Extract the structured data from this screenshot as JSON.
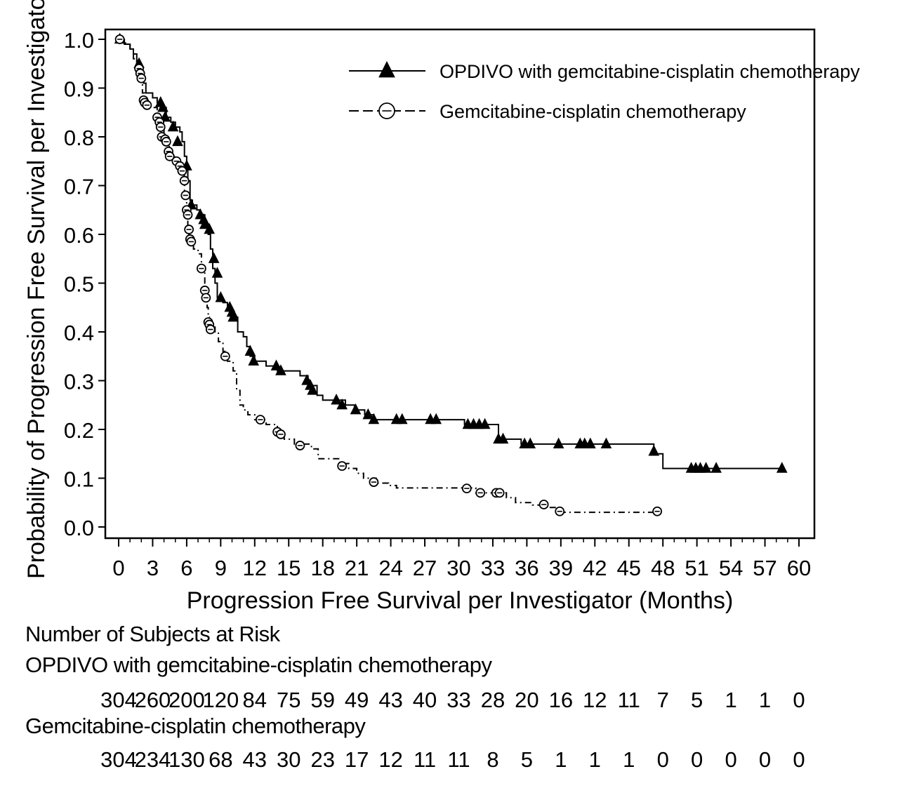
{
  "chart_data": {
    "type": "line",
    "subtype": "kaplan-meier",
    "title": "",
    "xlabel": "Progression Free Survival per Investigator (Months)",
    "ylabel": "Probability of Progression Free Survival per Investigator",
    "xlim": [
      0,
      60
    ],
    "ylim": [
      0.0,
      1.0
    ],
    "x_ticks": [
      0,
      3,
      6,
      9,
      12,
      15,
      18,
      21,
      24,
      27,
      30,
      33,
      36,
      39,
      42,
      45,
      48,
      51,
      54,
      57,
      60
    ],
    "y_ticks": [
      "0.0",
      "0.1",
      "0.2",
      "0.3",
      "0.4",
      "0.5",
      "0.6",
      "0.7",
      "0.8",
      "0.9",
      "1.0"
    ],
    "grid": false,
    "legend_position": "top-right",
    "series": [
      {
        "name": "OPDIVO with gemcitabine-cisplatin chemotherapy",
        "line_style": "solid",
        "marker": "filled-triangle",
        "color": "#000000",
        "steps": [
          [
            0,
            1.0
          ],
          [
            0.5,
            0.99
          ],
          [
            1.0,
            0.98
          ],
          [
            1.3,
            0.97
          ],
          [
            1.6,
            0.95
          ],
          [
            2.0,
            0.93
          ],
          [
            2.2,
            0.91
          ],
          [
            2.4,
            0.89
          ],
          [
            3.0,
            0.88
          ],
          [
            3.4,
            0.87
          ],
          [
            3.9,
            0.86
          ],
          [
            4.2,
            0.84
          ],
          [
            4.6,
            0.83
          ],
          [
            5.0,
            0.82
          ],
          [
            5.4,
            0.81
          ],
          [
            5.6,
            0.79
          ],
          [
            5.8,
            0.76
          ],
          [
            6.0,
            0.74
          ],
          [
            6.1,
            0.71
          ],
          [
            6.3,
            0.67
          ],
          [
            6.5,
            0.66
          ],
          [
            6.9,
            0.65
          ],
          [
            7.2,
            0.64
          ],
          [
            7.6,
            0.62
          ],
          [
            7.9,
            0.6
          ],
          [
            8.1,
            0.57
          ],
          [
            8.3,
            0.53
          ],
          [
            8.5,
            0.5
          ],
          [
            8.7,
            0.47
          ],
          [
            9.2,
            0.46
          ],
          [
            9.6,
            0.45
          ],
          [
            10.0,
            0.43
          ],
          [
            10.5,
            0.4
          ],
          [
            11.0,
            0.39
          ],
          [
            11.3,
            0.37
          ],
          [
            11.6,
            0.35
          ],
          [
            12.0,
            0.34
          ],
          [
            13.0,
            0.33
          ],
          [
            14.0,
            0.32
          ],
          [
            16.0,
            0.31
          ],
          [
            16.7,
            0.29
          ],
          [
            17.5,
            0.27
          ],
          [
            18.0,
            0.26
          ],
          [
            20.0,
            0.25
          ],
          [
            20.8,
            0.24
          ],
          [
            21.7,
            0.23
          ],
          [
            22.5,
            0.22
          ],
          [
            30.5,
            0.21
          ],
          [
            33.5,
            0.18
          ],
          [
            35.5,
            0.17
          ],
          [
            47.2,
            0.15
          ],
          [
            48.0,
            0.12
          ],
          [
            58.5,
            0.12
          ]
        ],
        "censor_marks": [
          [
            0.1,
            1.0
          ],
          [
            1.8,
            0.95
          ],
          [
            3.7,
            0.87
          ],
          [
            3.9,
            0.86
          ],
          [
            4.1,
            0.84
          ],
          [
            4.8,
            0.82
          ],
          [
            5.2,
            0.79
          ],
          [
            6.0,
            0.74
          ],
          [
            6.4,
            0.66
          ],
          [
            7.2,
            0.64
          ],
          [
            7.5,
            0.63
          ],
          [
            7.6,
            0.62
          ],
          [
            8.0,
            0.61
          ],
          [
            8.4,
            0.55
          ],
          [
            8.7,
            0.52
          ],
          [
            9.0,
            0.47
          ],
          [
            9.8,
            0.45
          ],
          [
            10.0,
            0.44
          ],
          [
            10.1,
            0.43
          ],
          [
            11.6,
            0.36
          ],
          [
            11.9,
            0.34
          ],
          [
            13.9,
            0.33
          ],
          [
            14.3,
            0.32
          ],
          [
            16.6,
            0.3
          ],
          [
            16.9,
            0.29
          ],
          [
            17.1,
            0.28
          ],
          [
            19.2,
            0.26
          ],
          [
            19.7,
            0.25
          ],
          [
            20.9,
            0.24
          ],
          [
            22.0,
            0.23
          ],
          [
            22.5,
            0.22
          ],
          [
            24.5,
            0.22
          ],
          [
            25.0,
            0.22
          ],
          [
            27.5,
            0.22
          ],
          [
            28.0,
            0.22
          ],
          [
            30.8,
            0.21
          ],
          [
            31.3,
            0.21
          ],
          [
            31.8,
            0.21
          ],
          [
            32.3,
            0.21
          ],
          [
            33.5,
            0.18
          ],
          [
            33.9,
            0.18
          ],
          [
            35.8,
            0.17
          ],
          [
            36.3,
            0.17
          ],
          [
            38.8,
            0.17
          ],
          [
            40.7,
            0.17
          ],
          [
            41.1,
            0.17
          ],
          [
            41.6,
            0.17
          ],
          [
            43.0,
            0.17
          ],
          [
            47.2,
            0.155
          ],
          [
            50.5,
            0.12
          ],
          [
            50.9,
            0.12
          ],
          [
            51.3,
            0.12
          ],
          [
            51.8,
            0.12
          ],
          [
            52.7,
            0.12
          ],
          [
            58.5,
            0.12
          ]
        ]
      },
      {
        "name": "Gemcitabine-cisplatin chemotherapy",
        "line_style": "dash-dot",
        "marker": "open-circle-with-bar",
        "color": "#000000",
        "steps": [
          [
            0,
            1.0
          ],
          [
            0.6,
            0.99
          ],
          [
            1.0,
            0.98
          ],
          [
            1.3,
            0.96
          ],
          [
            1.6,
            0.94
          ],
          [
            1.9,
            0.92
          ],
          [
            2.1,
            0.89
          ],
          [
            2.3,
            0.87
          ],
          [
            2.6,
            0.86
          ],
          [
            3.4,
            0.84
          ],
          [
            3.7,
            0.82
          ],
          [
            4.0,
            0.8
          ],
          [
            4.3,
            0.78
          ],
          [
            4.6,
            0.76
          ],
          [
            5.0,
            0.75
          ],
          [
            5.3,
            0.74
          ],
          [
            5.6,
            0.72
          ],
          [
            5.8,
            0.68
          ],
          [
            6.0,
            0.65
          ],
          [
            6.1,
            0.61
          ],
          [
            6.2,
            0.58
          ],
          [
            6.6,
            0.57
          ],
          [
            7.0,
            0.56
          ],
          [
            7.3,
            0.53
          ],
          [
            7.6,
            0.5
          ],
          [
            7.7,
            0.48
          ],
          [
            7.8,
            0.45
          ],
          [
            7.9,
            0.43
          ],
          [
            8.0,
            0.41
          ],
          [
            8.5,
            0.4
          ],
          [
            8.8,
            0.38
          ],
          [
            9.2,
            0.36
          ],
          [
            9.6,
            0.34
          ],
          [
            10.1,
            0.32
          ],
          [
            10.4,
            0.28
          ],
          [
            10.7,
            0.25
          ],
          [
            11.0,
            0.24
          ],
          [
            11.4,
            0.23
          ],
          [
            12.0,
            0.22
          ],
          [
            13.0,
            0.21
          ],
          [
            14.0,
            0.19
          ],
          [
            14.6,
            0.18
          ],
          [
            15.5,
            0.17
          ],
          [
            17.0,
            0.16
          ],
          [
            17.6,
            0.14
          ],
          [
            19.5,
            0.13
          ],
          [
            20.3,
            0.12
          ],
          [
            21.0,
            0.11
          ],
          [
            21.6,
            0.1
          ],
          [
            22.7,
            0.09
          ],
          [
            23.8,
            0.085
          ],
          [
            24.5,
            0.08
          ],
          [
            31.5,
            0.07
          ],
          [
            34.2,
            0.06
          ],
          [
            35.0,
            0.05
          ],
          [
            36.5,
            0.045
          ],
          [
            38.0,
            0.04
          ],
          [
            38.8,
            0.03
          ],
          [
            47.5,
            0.03
          ]
        ],
        "censor_marks": [
          [
            0.1,
            1.0
          ],
          [
            1.8,
            0.94
          ],
          [
            1.9,
            0.93
          ],
          [
            2.0,
            0.92
          ],
          [
            2.2,
            0.875
          ],
          [
            2.3,
            0.87
          ],
          [
            2.5,
            0.865
          ],
          [
            3.4,
            0.84
          ],
          [
            3.6,
            0.83
          ],
          [
            3.7,
            0.82
          ],
          [
            3.8,
            0.8
          ],
          [
            4.1,
            0.795
          ],
          [
            4.2,
            0.79
          ],
          [
            4.4,
            0.77
          ],
          [
            4.5,
            0.76
          ],
          [
            5.1,
            0.75
          ],
          [
            5.4,
            0.74
          ],
          [
            5.6,
            0.73
          ],
          [
            5.8,
            0.71
          ],
          [
            5.9,
            0.68
          ],
          [
            6.0,
            0.65
          ],
          [
            6.1,
            0.64
          ],
          [
            6.2,
            0.61
          ],
          [
            6.3,
            0.59
          ],
          [
            6.4,
            0.585
          ],
          [
            7.3,
            0.53
          ],
          [
            7.6,
            0.485
          ],
          [
            7.7,
            0.47
          ],
          [
            7.9,
            0.42
          ],
          [
            8.0,
            0.415
          ],
          [
            8.1,
            0.405
          ],
          [
            9.4,
            0.35
          ],
          [
            12.5,
            0.22
          ],
          [
            14.0,
            0.195
          ],
          [
            14.3,
            0.19
          ],
          [
            16.0,
            0.167
          ],
          [
            19.7,
            0.125
          ],
          [
            22.5,
            0.092
          ],
          [
            30.7,
            0.079
          ],
          [
            31.9,
            0.07
          ],
          [
            33.3,
            0.07
          ],
          [
            33.6,
            0.07
          ],
          [
            37.5,
            0.046
          ],
          [
            38.9,
            0.032
          ],
          [
            47.5,
            0.032
          ]
        ]
      }
    ],
    "risk_table": {
      "title": "Number of Subjects at Risk",
      "timepoints": [
        0,
        3,
        6,
        9,
        12,
        15,
        18,
        21,
        24,
        27,
        30,
        33,
        36,
        39,
        42,
        45,
        48,
        51,
        54,
        57,
        60
      ],
      "rows": [
        {
          "label": "OPDIVO with gemcitabine-cisplatin chemotherapy",
          "values": [
            "304",
            "260",
            "200",
            "120",
            "84",
            "75",
            "59",
            "49",
            "43",
            "40",
            "33",
            "28",
            "20",
            "16",
            "12",
            "11",
            "7",
            "5",
            "1",
            "1",
            "0"
          ]
        },
        {
          "label": "Gemcitabine-cisplatin chemotherapy",
          "values": [
            "304",
            "234",
            "130",
            "68",
            "43",
            "30",
            "23",
            "17",
            "12",
            "11",
            "11",
            "8",
            "5",
            "1",
            "1",
            "1",
            "0",
            "0",
            "0",
            "0",
            "0"
          ]
        }
      ]
    }
  }
}
